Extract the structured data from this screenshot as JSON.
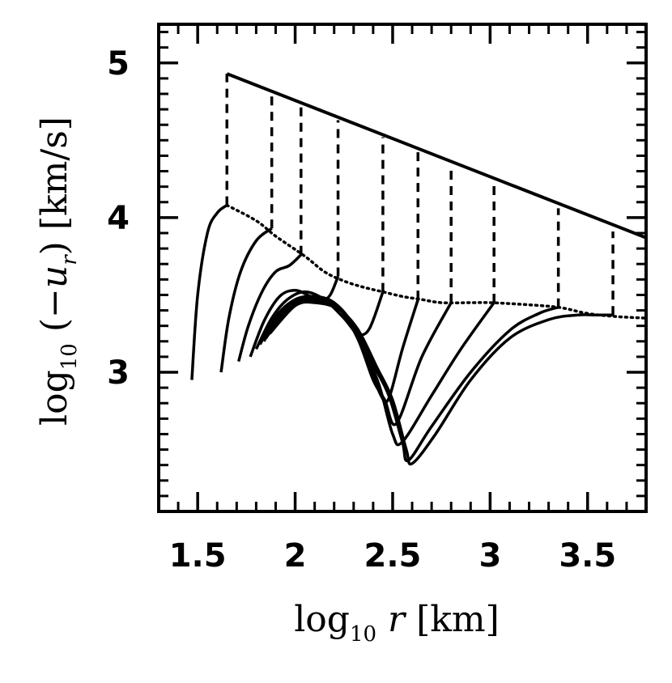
{
  "chart_data": {
    "type": "line",
    "title": "",
    "xlabel": "log10 r [km]",
    "ylabel": "log10 (−u_r) [km/s]",
    "xlabel_parts": {
      "pre": "log",
      "sub": "10",
      "var": "r",
      "unit": "[km]"
    },
    "ylabel_parts": {
      "pre": "log",
      "sub": "10",
      "open": "(−",
      "var": "u",
      "varsub": "r",
      "close": ")",
      "unit": "[km/s]"
    },
    "xlim": [
      1.3,
      3.8
    ],
    "ylim": [
      2.1,
      5.25
    ],
    "x_ticks": [
      1.5,
      2,
      2.5,
      3,
      3.5
    ],
    "x_tick_labels": [
      "1.5",
      "2",
      "2.5",
      "3",
      "3.5"
    ],
    "y_ticks": [
      3,
      4,
      5
    ],
    "y_tick_labels": [
      "3",
      "4",
      "5"
    ],
    "x_minor_step": 0.1,
    "y_minor_step": 0.1,
    "grid": false,
    "legend": "none",
    "envelopes": [
      {
        "style": "solid",
        "x": [
          1.65,
          3.8
        ],
        "y": [
          4.93,
          3.87
        ]
      },
      {
        "style": "dotted",
        "x": [
          1.65,
          1.8,
          1.9,
          2.05,
          2.15,
          2.25,
          2.35,
          2.45,
          2.55,
          2.65,
          2.75,
          2.9,
          3.0,
          3.15,
          3.35,
          3.5,
          3.65,
          3.8
        ],
        "y": [
          4.08,
          3.98,
          3.88,
          3.75,
          3.65,
          3.59,
          3.55,
          3.52,
          3.49,
          3.47,
          3.45,
          3.45,
          3.45,
          3.44,
          3.42,
          3.38,
          3.36,
          3.35
        ]
      }
    ],
    "shock_jumps": [
      {
        "x": 1.65,
        "y_low": 4.08,
        "y_high": 4.93
      },
      {
        "x": 1.88,
        "y_low": 3.93,
        "y_high": 4.81
      },
      {
        "x": 2.03,
        "y_low": 3.76,
        "y_high": 4.73
      },
      {
        "x": 2.22,
        "y_low": 3.62,
        "y_high": 4.63
      },
      {
        "x": 2.45,
        "y_low": 3.52,
        "y_high": 4.52
      },
      {
        "x": 2.63,
        "y_low": 3.47,
        "y_high": 4.43
      },
      {
        "x": 2.8,
        "y_low": 3.45,
        "y_high": 4.34
      },
      {
        "x": 3.02,
        "y_low": 3.45,
        "y_high": 4.22
      },
      {
        "x": 3.35,
        "y_low": 3.42,
        "y_high": 4.06
      },
      {
        "x": 3.63,
        "y_low": 3.37,
        "y_high": 3.91
      }
    ],
    "series": [
      {
        "x": [
          1.47,
          1.5,
          1.55,
          1.6,
          1.65
        ],
        "y": [
          2.95,
          3.5,
          3.9,
          4.03,
          4.08
        ]
      },
      {
        "x": [
          1.62,
          1.66,
          1.72,
          1.8,
          1.88
        ],
        "y": [
          3.0,
          3.35,
          3.65,
          3.85,
          3.93
        ]
      },
      {
        "x": [
          1.71,
          1.76,
          1.83,
          1.9,
          1.97,
          2.03
        ],
        "y": [
          3.07,
          3.3,
          3.52,
          3.65,
          3.69,
          3.76
        ]
      },
      {
        "x": [
          1.77,
          1.84,
          1.92,
          2.0,
          2.08,
          2.14,
          2.18,
          2.22
        ],
        "y": [
          3.1,
          3.33,
          3.49,
          3.53,
          3.49,
          3.47,
          3.5,
          3.62
        ]
      },
      {
        "x": [
          1.8,
          1.88,
          1.96,
          2.05,
          2.15,
          2.25,
          2.32,
          2.38,
          2.45
        ],
        "y": [
          3.15,
          3.35,
          3.47,
          3.52,
          3.47,
          3.35,
          3.25,
          3.28,
          3.52
        ]
      },
      {
        "x": [
          1.82,
          1.9,
          2.0,
          2.1,
          2.2,
          2.3,
          2.38,
          2.44,
          2.48,
          2.55,
          2.63
        ],
        "y": [
          3.18,
          3.36,
          3.47,
          3.49,
          3.45,
          3.3,
          3.05,
          2.85,
          2.83,
          3.15,
          3.47
        ]
      },
      {
        "x": [
          1.84,
          1.92,
          2.02,
          2.12,
          2.22,
          2.32,
          2.4,
          2.46,
          2.52,
          2.65,
          2.8
        ],
        "y": [
          3.2,
          3.38,
          3.47,
          3.48,
          3.42,
          3.22,
          2.95,
          2.82,
          2.67,
          3.1,
          3.45
        ]
      },
      {
        "x": [
          1.85,
          1.95,
          2.05,
          2.15,
          2.25,
          2.35,
          2.43,
          2.5,
          2.55,
          2.7,
          2.85,
          3.02
        ],
        "y": [
          3.22,
          3.4,
          3.47,
          3.46,
          3.38,
          3.15,
          2.92,
          2.6,
          2.55,
          2.85,
          3.15,
          3.45
        ]
      },
      {
        "x": [
          1.86,
          1.98,
          2.08,
          2.2,
          2.3,
          2.4,
          2.48,
          2.55,
          2.58,
          2.7,
          2.9,
          3.1,
          3.25,
          3.35
        ],
        "y": [
          3.24,
          3.42,
          3.46,
          3.43,
          3.3,
          3.05,
          2.85,
          2.55,
          2.43,
          2.65,
          3.0,
          3.27,
          3.38,
          3.42
        ]
      },
      {
        "x": [
          1.87,
          2.0,
          2.1,
          2.22,
          2.32,
          2.42,
          2.5,
          2.57,
          2.6,
          2.72,
          2.9,
          3.1,
          3.3,
          3.45,
          3.55,
          3.63
        ],
        "y": [
          3.25,
          3.43,
          3.45,
          3.41,
          3.28,
          3.03,
          2.82,
          2.5,
          2.41,
          2.6,
          2.95,
          3.22,
          3.34,
          3.37,
          3.37,
          3.37
        ]
      }
    ]
  }
}
